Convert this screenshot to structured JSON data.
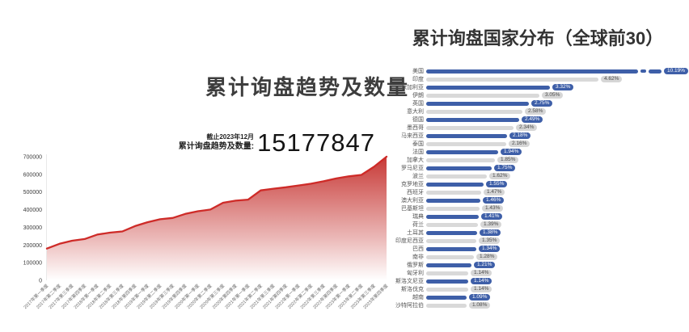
{
  "page": {
    "background": "#ffffff"
  },
  "left_chart": {
    "title": "累计询盘趋势及数量",
    "as_of": "截止2023年12月",
    "total_label": "累计询盘趋势及数量:",
    "total_value": "15177847",
    "line_color": "#ce2b28",
    "fill_color": "#c5312e"
  },
  "right_chart": {
    "title": "累计询盘国家分布（全球前30）",
    "bar_blue": "#3e5fa8",
    "bar_gray": "#d9d9d9"
  },
  "chart_data": [
    {
      "type": "area",
      "title": "累计询盘趋势及数量",
      "xlabel": "",
      "ylabel": "",
      "ylim": [
        0,
        700000
      ],
      "yticks": [
        0,
        100000,
        200000,
        300000,
        400000,
        500000,
        600000,
        700000
      ],
      "grid": false,
      "x": [
        "2017年第一季度",
        "2017年第二季度",
        "2017年第三季度",
        "2017年第四季度",
        "2018年第一季度",
        "2018年第二季度",
        "2018年第三季度",
        "2018年第四季度",
        "2019年第一季度",
        "2019年第二季度",
        "2019年第三季度",
        "2019年第四季度",
        "2020年第一季度",
        "2020年第二季度",
        "2020年第三季度",
        "2020年第四季度",
        "2021年第一季度",
        "2021年第二季度",
        "2021年第三季度",
        "2021年第四季度",
        "2022年第一季度",
        "2022年第二季度",
        "2022年第三季度",
        "2022年第四季度",
        "2023年第一季度",
        "2023年第二季度",
        "2023年第三季度",
        "2023年第四季度"
      ],
      "values": [
        180000,
        207000,
        224000,
        234000,
        259000,
        270000,
        277000,
        307000,
        329000,
        346000,
        353000,
        376000,
        391000,
        401000,
        439000,
        451000,
        457000,
        509000,
        519000,
        527000,
        537000,
        547000,
        561000,
        577000,
        589000,
        597000,
        643000,
        700000
      ]
    },
    {
      "type": "bar",
      "orientation": "horizontal",
      "title": "累计询盘国家分布（全球前30）",
      "legend_position": "none",
      "axis_break_row": 0,
      "categories": [
        "美国",
        "印度",
        "保加利亚",
        "伊朗",
        "英国",
        "意大利",
        "德国",
        "墨西哥",
        "马来西亚",
        "泰国",
        "法国",
        "加拿大",
        "罗马尼亚",
        "波兰",
        "克罗地亚",
        "西班牙",
        "澳大利亚",
        "巴基斯坦",
        "瑞典",
        "荷兰",
        "土耳其",
        "印度尼西亚",
        "巴西",
        "南非",
        "俄罗斯",
        "匈牙利",
        "斯洛文尼亚",
        "斯洛伐克",
        "越南",
        "沙特阿拉伯"
      ],
      "values": [
        10.19,
        4.62,
        3.32,
        3.05,
        2.75,
        2.58,
        2.49,
        2.34,
        2.18,
        2.16,
        1.94,
        1.85,
        1.75,
        1.62,
        1.55,
        1.47,
        1.46,
        1.43,
        1.41,
        1.39,
        1.38,
        1.35,
        1.34,
        1.28,
        1.21,
        1.14,
        1.14,
        1.14,
        1.09,
        1.08
      ],
      "labels": [
        "10.19%",
        "4.62%",
        "3.32%",
        "3.05%",
        "2.75%",
        "2.58%",
        "2.49%",
        "2.34%",
        "2.18%",
        "2.16%",
        "1.94%",
        "1.85%",
        "1.75%",
        "1.62%",
        "1.55%",
        "1.47%",
        "1.46%",
        "1.43%",
        "1.41%",
        "1.39%",
        "1.38%",
        "1.35%",
        "1.34%",
        "1.28%",
        "1.21%",
        "1.14%",
        "1.14%",
        "1.14%",
        "1.09%",
        "1.08%"
      ]
    }
  ]
}
